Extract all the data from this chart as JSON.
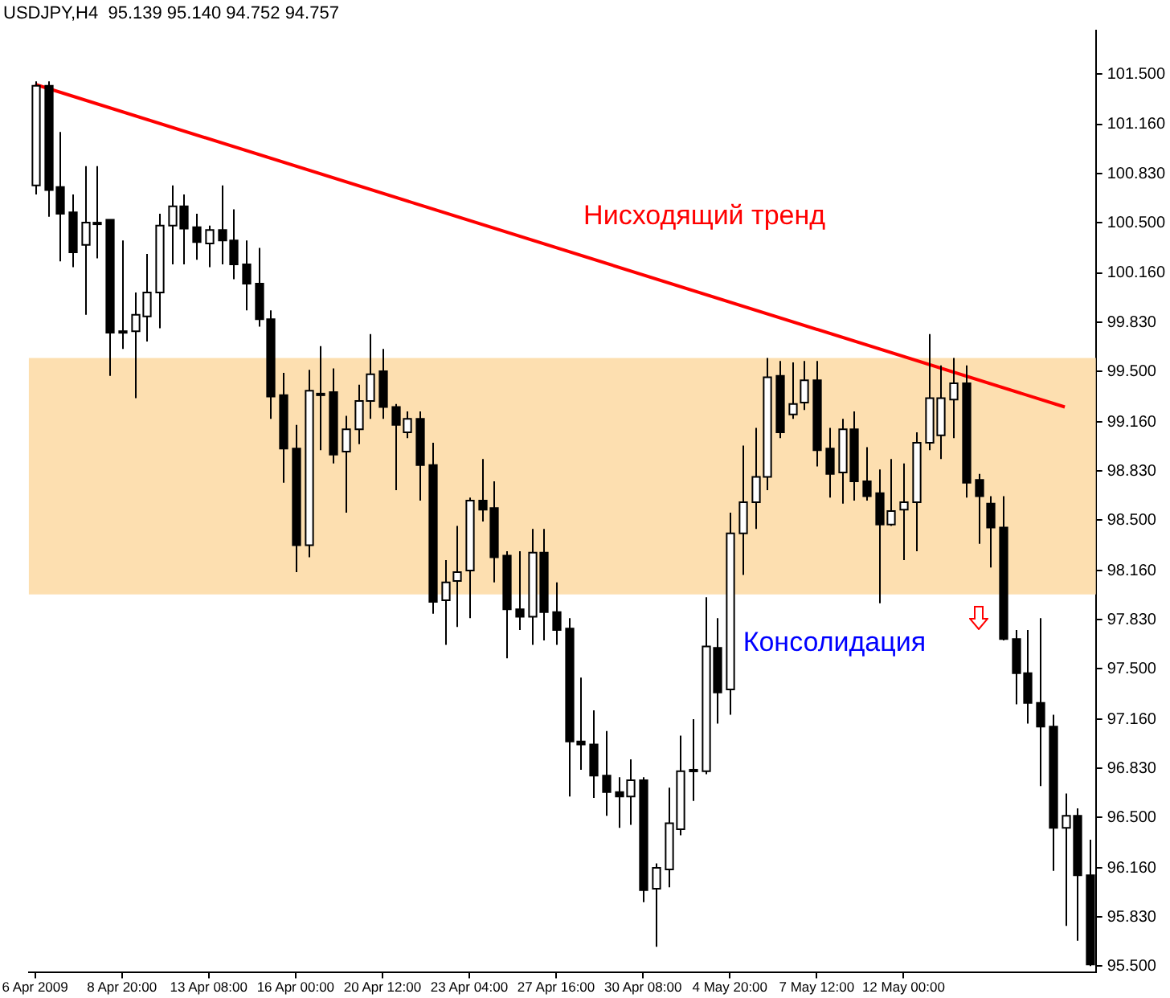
{
  "chart_data": {
    "type": "candlestick",
    "title": "USDJPY,H4  95.139 95.140 94.752 94.757",
    "categories": [
      "6 Apr 2009",
      null,
      null,
      null,
      null,
      null,
      null,
      "8 Apr 20:00",
      null,
      null,
      null,
      null,
      null,
      null,
      "13 Apr 08:00",
      null,
      null,
      null,
      null,
      null,
      null,
      "16 Apr 00:00",
      null,
      null,
      null,
      null,
      null,
      null,
      "20 Apr 12:00",
      null,
      null,
      null,
      null,
      null,
      null,
      "23 Apr 04:00",
      null,
      null,
      null,
      null,
      null,
      null,
      "27 Apr 16:00",
      null,
      null,
      null,
      null,
      null,
      null,
      "30 Apr 08:00",
      null,
      null,
      null,
      null,
      null,
      null,
      "4 May 20:00",
      null,
      null,
      null,
      null,
      null,
      null,
      "7 May 12:00",
      null,
      null,
      null,
      null,
      null,
      null,
      "12 May 00:00",
      null,
      null,
      null,
      null,
      null,
      null,
      null,
      null,
      null,
      null,
      null,
      null,
      null,
      null,
      null
    ],
    "ohlc": [
      [
        100.75,
        101.45,
        100.69,
        101.42
      ],
      [
        101.42,
        101.45,
        100.54,
        100.72
      ],
      [
        100.74,
        101.11,
        100.24,
        100.56
      ],
      [
        100.57,
        100.69,
        100.2,
        100.3
      ],
      [
        100.35,
        100.88,
        99.88,
        100.5
      ],
      [
        100.49,
        100.88,
        100.26,
        100.5
      ],
      [
        100.52,
        100.52,
        99.47,
        99.76
      ],
      [
        99.76,
        100.38,
        99.65,
        99.77
      ],
      [
        99.77,
        100.03,
        99.32,
        99.88
      ],
      [
        99.87,
        100.29,
        99.7,
        100.03
      ],
      [
        100.03,
        100.56,
        99.79,
        100.48
      ],
      [
        100.48,
        100.75,
        100.22,
        100.61
      ],
      [
        100.61,
        100.69,
        100.22,
        100.46
      ],
      [
        100.47,
        100.56,
        100.25,
        100.37
      ],
      [
        100.36,
        100.48,
        100.2,
        100.45
      ],
      [
        100.45,
        100.75,
        100.22,
        100.38
      ],
      [
        100.38,
        100.59,
        100.12,
        100.22
      ],
      [
        100.22,
        100.38,
        99.91,
        100.09
      ],
      [
        100.09,
        100.33,
        99.8,
        99.85
      ],
      [
        99.85,
        99.91,
        99.18,
        99.33
      ],
      [
        99.34,
        99.49,
        98.75,
        98.98
      ],
      [
        98.98,
        99.14,
        98.15,
        98.33
      ],
      [
        98.33,
        99.51,
        98.25,
        99.37
      ],
      [
        99.35,
        99.67,
        98.97,
        99.35
      ],
      [
        99.36,
        99.52,
        98.88,
        98.94
      ],
      [
        98.96,
        99.2,
        98.55,
        99.11
      ],
      [
        99.11,
        99.41,
        99.01,
        99.3
      ],
      [
        99.3,
        99.75,
        99.18,
        99.48
      ],
      [
        99.5,
        99.65,
        99.18,
        99.26
      ],
      [
        99.26,
        99.28,
        98.7,
        99.14
      ],
      [
        99.09,
        99.23,
        99.05,
        99.18
      ],
      [
        99.18,
        99.23,
        98.63,
        98.87
      ],
      [
        98.87,
        99.02,
        97.87,
        97.95
      ],
      [
        97.96,
        98.23,
        97.66,
        98.08
      ],
      [
        98.09,
        98.46,
        97.78,
        98.15
      ],
      [
        98.16,
        98.65,
        97.84,
        98.63
      ],
      [
        98.63,
        98.91,
        98.49,
        98.57
      ],
      [
        98.58,
        98.76,
        98.08,
        98.25
      ],
      [
        98.26,
        98.29,
        97.57,
        97.9
      ],
      [
        97.9,
        98.29,
        97.76,
        97.85
      ],
      [
        97.85,
        98.44,
        97.66,
        98.28
      ],
      [
        98.28,
        98.44,
        97.69,
        97.88
      ],
      [
        97.88,
        98.08,
        97.66,
        97.76
      ],
      [
        97.77,
        97.84,
        96.64,
        97.01
      ],
      [
        97.01,
        97.44,
        96.82,
        96.99
      ],
      [
        96.99,
        97.22,
        96.63,
        96.78
      ],
      [
        96.78,
        97.08,
        96.51,
        96.67
      ],
      [
        96.67,
        96.77,
        96.43,
        96.64
      ],
      [
        96.64,
        96.89,
        96.45,
        96.75
      ],
      [
        96.75,
        96.77,
        95.93,
        96.01
      ],
      [
        96.02,
        96.19,
        95.63,
        96.16
      ],
      [
        96.15,
        96.7,
        96.03,
        96.46
      ],
      [
        96.42,
        97.05,
        96.38,
        96.81
      ],
      [
        96.81,
        97.16,
        96.61,
        96.82
      ],
      [
        96.81,
        97.98,
        96.79,
        97.65
      ],
      [
        97.64,
        97.84,
        97.13,
        97.34
      ],
      [
        97.36,
        98.55,
        97.19,
        98.41
      ],
      [
        98.41,
        99.0,
        98.13,
        98.62
      ],
      [
        98.62,
        99.12,
        98.44,
        98.79
      ],
      [
        98.79,
        99.59,
        98.7,
        99.46
      ],
      [
        99.47,
        99.57,
        99.05,
        99.09
      ],
      [
        99.21,
        99.56,
        99.18,
        99.28
      ],
      [
        99.29,
        99.57,
        99.24,
        99.44
      ],
      [
        99.44,
        99.57,
        98.86,
        98.97
      ],
      [
        98.98,
        99.12,
        98.65,
        98.81
      ],
      [
        98.82,
        99.18,
        98.61,
        99.11
      ],
      [
        99.11,
        99.23,
        98.63,
        98.76
      ],
      [
        98.76,
        98.99,
        98.63,
        98.66
      ],
      [
        98.68,
        98.84,
        97.94,
        98.47
      ],
      [
        98.47,
        98.91,
        98.46,
        98.56
      ],
      [
        98.57,
        98.88,
        98.23,
        98.62
      ],
      [
        98.62,
        99.09,
        98.29,
        99.02
      ],
      [
        99.02,
        99.75,
        98.97,
        99.32
      ],
      [
        99.07,
        99.54,
        98.91,
        99.32
      ],
      [
        99.31,
        99.59,
        99.05,
        99.42
      ],
      [
        99.42,
        99.54,
        98.65,
        98.75
      ],
      [
        98.77,
        98.81,
        98.34,
        98.66
      ],
      [
        98.61,
        98.66,
        98.18,
        98.45
      ],
      [
        98.45,
        98.66,
        97.69,
        97.7
      ],
      [
        97.7,
        97.76,
        97.26,
        97.47
      ],
      [
        97.47,
        97.76,
        97.13,
        97.27
      ],
      [
        97.27,
        97.84,
        96.71,
        97.11
      ],
      [
        97.11,
        97.19,
        96.14,
        96.43
      ],
      [
        96.43,
        96.66,
        95.77,
        96.51
      ],
      [
        96.51,
        96.56,
        95.67,
        96.11
      ],
      [
        96.11,
        96.35,
        95.5,
        95.51
      ]
    ],
    "series": [
      {
        "type": "line",
        "name": "Нисходящий тренд",
        "color": "#ff0000",
        "values": [
          101.43,
          null,
          null,
          null,
          null,
          null,
          null,
          null,
          null,
          null,
          null,
          null,
          null,
          null,
          null,
          null,
          null,
          null,
          null,
          null,
          null,
          null,
          null,
          null,
          null,
          null,
          null,
          null,
          null,
          null,
          null,
          null,
          null,
          null,
          null,
          null,
          null,
          null,
          null,
          null,
          null,
          null,
          null,
          null,
          null,
          null,
          null,
          null,
          null,
          null,
          null,
          null,
          null,
          null,
          null,
          null,
          null,
          null,
          null,
          null,
          null,
          null,
          null,
          null,
          null,
          null,
          null,
          null,
          null,
          null,
          null,
          null,
          null,
          null,
          null,
          null,
          null,
          null,
          null,
          null,
          null,
          null,
          null,
          99.26,
          null,
          null
        ]
      }
    ],
    "ylim": [
      95.46,
      101.79
    ],
    "yticks": [
      {
        "value": 95.5,
        "label": "95.500"
      },
      {
        "value": 95.83,
        "label": "95.830"
      },
      {
        "value": 96.16,
        "label": "96.160"
      },
      {
        "value": 96.5,
        "label": "96.500"
      },
      {
        "value": 96.83,
        "label": "96.830"
      },
      {
        "value": 97.16,
        "label": "97.160"
      },
      {
        "value": 97.5,
        "label": "97.500"
      },
      {
        "value": 97.83,
        "label": "97.830"
      },
      {
        "value": 98.16,
        "label": "98.160"
      },
      {
        "value": 98.5,
        "label": "98.500"
      },
      {
        "value": 98.83,
        "label": "98.830"
      },
      {
        "value": 99.16,
        "label": "99.160"
      },
      {
        "value": 99.5,
        "label": "99.500"
      },
      {
        "value": 99.83,
        "label": "99.830"
      },
      {
        "value": 100.16,
        "label": "100.160"
      },
      {
        "value": 100.5,
        "label": "100.500"
      },
      {
        "value": 100.83,
        "label": "100.830"
      },
      {
        "value": 101.16,
        "label": "101.160"
      },
      {
        "value": 101.5,
        "label": "101.500"
      }
    ],
    "bands": [
      {
        "axis": "y",
        "from": 98.0,
        "to": 99.59,
        "color": "#fddfb0"
      }
    ],
    "annotations": [
      "Консолидация"
    ]
  }
}
